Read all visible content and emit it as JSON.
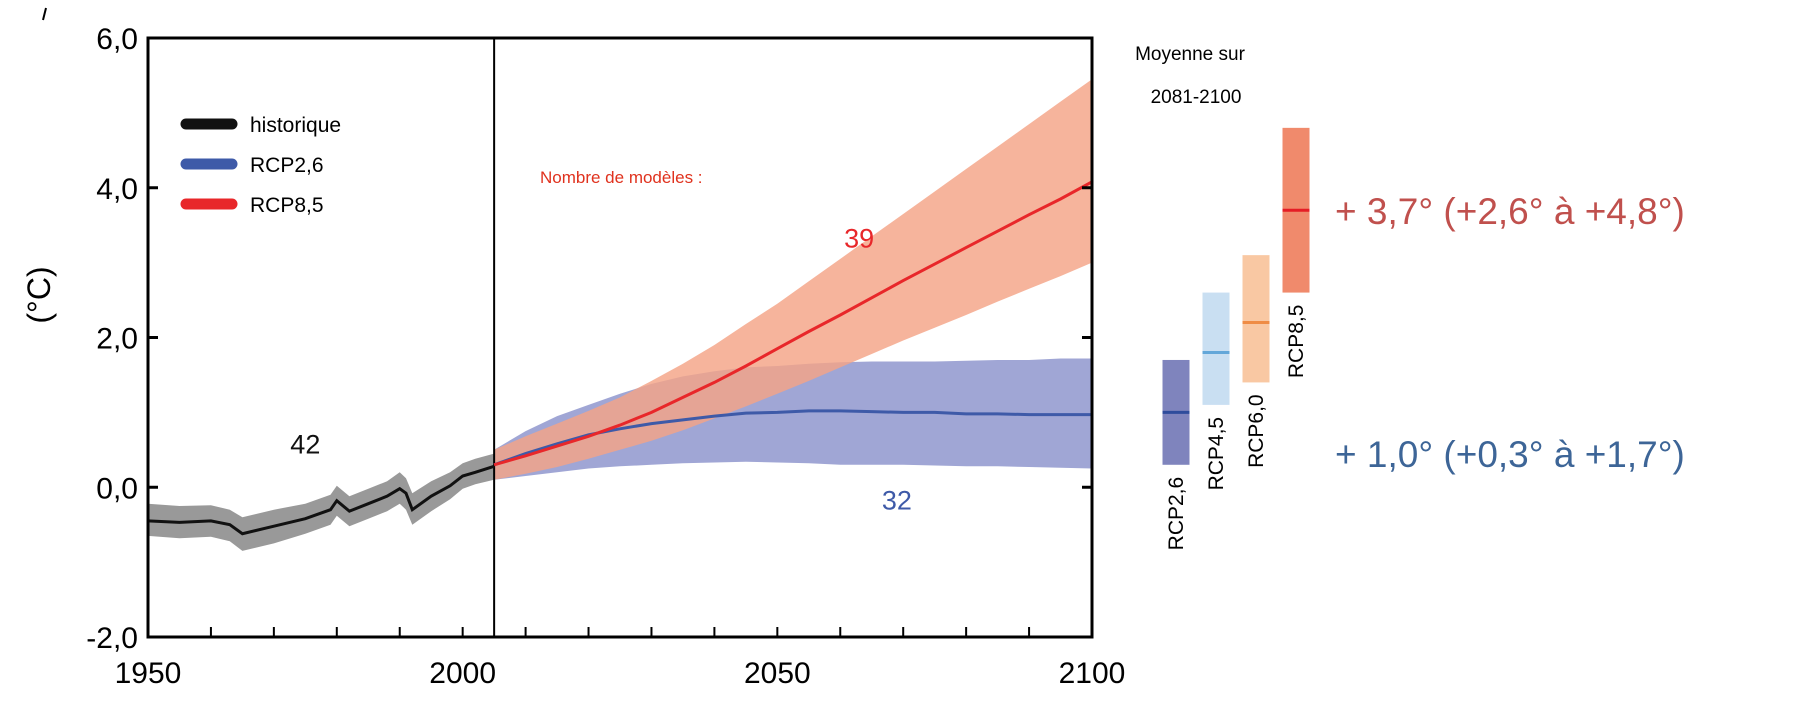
{
  "chart_data": {
    "type": "line",
    "title": "",
    "xlabel": "",
    "ylabel": "(°C)",
    "xlim": [
      1950,
      2100
    ],
    "ylim": [
      -2.0,
      6.0
    ],
    "x_ticks": [
      1950,
      2000,
      2050,
      2100
    ],
    "x_tick_labels": [
      "1950",
      "2000",
      "2050",
      "2100"
    ],
    "y_ticks": [
      -2.0,
      0.0,
      2.0,
      4.0,
      6.0
    ],
    "y_tick_labels": [
      "-2,0",
      "0,0",
      "2,0",
      "4,0",
      "6,0"
    ],
    "grid": false,
    "legend_position": "top-left",
    "legend": [
      {
        "label": "historique",
        "color": "#111111"
      },
      {
        "label": "RCP2,6",
        "color": "#3e5aa8"
      },
      {
        "label": "RCP8,5",
        "color": "#e8272a"
      }
    ],
    "vertical_line_x": 2005,
    "models_title": "Nombre de modèles :",
    "series": [
      {
        "name": "historique",
        "color": "#111111",
        "band_color": "#999999",
        "models_count": "42",
        "count_at": [
          1975,
          0.45
        ],
        "x": [
          1950,
          1955,
          1960,
          1963,
          1965,
          1970,
          1975,
          1979,
          1980,
          1982,
          1985,
          1988,
          1990,
          1991,
          1992,
          1995,
          1998,
          2000,
          2002,
          2005
        ],
        "y": [
          -0.45,
          -0.47,
          -0.45,
          -0.5,
          -0.62,
          -0.52,
          -0.42,
          -0.3,
          -0.18,
          -0.32,
          -0.22,
          -0.12,
          -0.02,
          -0.08,
          -0.3,
          -0.12,
          0.02,
          0.15,
          0.2,
          0.28
        ],
        "lower": [
          -0.65,
          -0.68,
          -0.66,
          -0.72,
          -0.85,
          -0.75,
          -0.62,
          -0.5,
          -0.38,
          -0.52,
          -0.42,
          -0.32,
          -0.22,
          -0.3,
          -0.5,
          -0.32,
          -0.16,
          -0.02,
          0.04,
          0.1
        ],
        "upper": [
          -0.22,
          -0.25,
          -0.24,
          -0.3,
          -0.4,
          -0.3,
          -0.22,
          -0.1,
          0.02,
          -0.12,
          -0.02,
          0.08,
          0.2,
          0.12,
          -0.08,
          0.08,
          0.2,
          0.32,
          0.38,
          0.45
        ]
      },
      {
        "name": "RCP2,6",
        "color": "#3e5aa8",
        "band_color": "#8b93cc",
        "models_count": "32",
        "count_at": [
          2069,
          -0.3
        ],
        "x": [
          2005,
          2010,
          2015,
          2020,
          2025,
          2030,
          2035,
          2040,
          2045,
          2050,
          2055,
          2060,
          2065,
          2070,
          2075,
          2080,
          2085,
          2090,
          2095,
          2100
        ],
        "y": [
          0.3,
          0.45,
          0.58,
          0.7,
          0.78,
          0.85,
          0.9,
          0.95,
          0.99,
          1.0,
          1.02,
          1.02,
          1.01,
          1.0,
          1.0,
          0.98,
          0.98,
          0.97,
          0.97,
          0.97
        ],
        "lower": [
          0.1,
          0.15,
          0.2,
          0.25,
          0.28,
          0.3,
          0.32,
          0.33,
          0.34,
          0.33,
          0.32,
          0.3,
          0.3,
          0.3,
          0.29,
          0.28,
          0.28,
          0.27,
          0.26,
          0.25
        ],
        "upper": [
          0.5,
          0.75,
          0.95,
          1.1,
          1.25,
          1.38,
          1.48,
          1.55,
          1.6,
          1.62,
          1.65,
          1.67,
          1.68,
          1.68,
          1.68,
          1.69,
          1.7,
          1.7,
          1.72,
          1.72
        ]
      },
      {
        "name": "RCP8,5",
        "color": "#e8272a",
        "band_color": "#f4a386",
        "models_count": "39",
        "count_at": [
          2063,
          3.2
        ],
        "x": [
          2005,
          2010,
          2015,
          2020,
          2025,
          2030,
          2035,
          2040,
          2045,
          2050,
          2055,
          2060,
          2065,
          2070,
          2075,
          2080,
          2085,
          2090,
          2095,
          2100
        ],
        "y": [
          0.3,
          0.42,
          0.55,
          0.68,
          0.83,
          1.0,
          1.2,
          1.4,
          1.62,
          1.85,
          2.08,
          2.3,
          2.53,
          2.76,
          2.98,
          3.2,
          3.42,
          3.64,
          3.85,
          4.08
        ],
        "lower": [
          0.1,
          0.18,
          0.27,
          0.38,
          0.5,
          0.62,
          0.76,
          0.92,
          1.08,
          1.25,
          1.42,
          1.6,
          1.78,
          1.96,
          2.13,
          2.3,
          2.48,
          2.65,
          2.82,
          3.0
        ],
        "upper": [
          0.5,
          0.68,
          0.85,
          1.02,
          1.2,
          1.42,
          1.65,
          1.9,
          2.18,
          2.45,
          2.75,
          3.05,
          3.35,
          3.65,
          3.95,
          4.25,
          4.55,
          4.85,
          5.15,
          5.45
        ]
      }
    ],
    "period_panel": {
      "title_line1": "Moyenne sur",
      "title_line2": "2081-2100",
      "bars": [
        {
          "name": "RCP2,6",
          "mean": 1.0,
          "low": 0.3,
          "high": 1.7,
          "bar_color": "#7f84bd",
          "line_color": "#2e4c9c"
        },
        {
          "name": "RCP4,5",
          "mean": 1.8,
          "low": 1.1,
          "high": 2.6,
          "bar_color": "#c9dff2",
          "line_color": "#63a7d9"
        },
        {
          "name": "RCP6,0",
          "mean": 2.2,
          "low": 1.4,
          "high": 3.1,
          "bar_color": "#f9c8a3",
          "line_color": "#ef8c45"
        },
        {
          "name": "RCP8,5",
          "mean": 3.7,
          "low": 2.6,
          "high": 4.8,
          "bar_color": "#f08a6c",
          "line_color": "#e51d25"
        }
      ]
    },
    "annotations": [
      {
        "text": "+ 3,7° (+2,6° à +4,8°)",
        "color": "#c0504d"
      },
      {
        "text": "+ 1,0° (+0,3° à +1,7°)",
        "color": "#3d6597"
      }
    ]
  }
}
